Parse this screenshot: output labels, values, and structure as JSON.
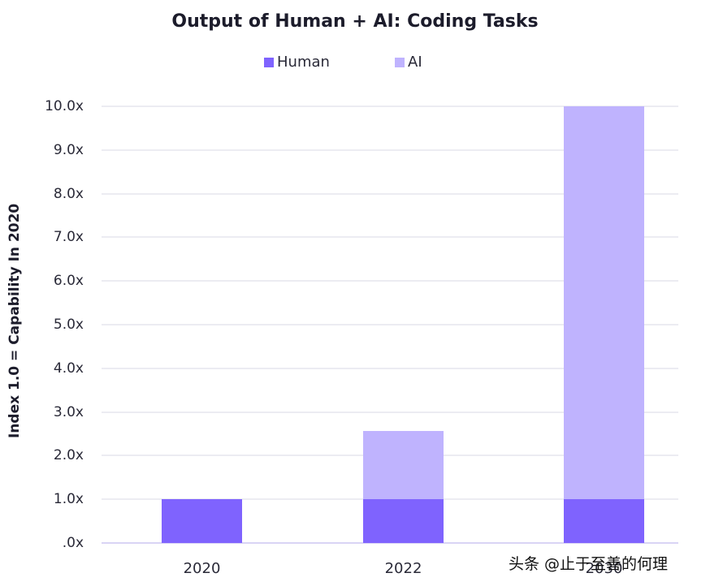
{
  "chart_data": {
    "type": "bar",
    "stacked": true,
    "title": "Output of Human + AI: Coding Tasks",
    "xlabel": "",
    "ylabel": "Index 1.0 = Capability In 2020",
    "categories": [
      "2020",
      "2022",
      "2030"
    ],
    "series": [
      {
        "name": "Human",
        "color": "#7f63fe",
        "values": [
          1.0,
          1.0,
          1.0
        ]
      },
      {
        "name": "AI",
        "color": "#bfb3fe",
        "values": [
          0.0,
          1.57,
          9.0
        ]
      }
    ],
    "totals": [
      1.0,
      2.57,
      10.0
    ],
    "ylim": [
      0,
      10
    ],
    "yticks": [
      ".0x",
      "1.0x",
      "2.0x",
      "3.0x",
      "4.0x",
      "5.0x",
      "6.0x",
      "7.0x",
      "8.0x",
      "9.0x",
      "10.0x"
    ],
    "grid": true,
    "legend_position": "top"
  },
  "legend": [
    {
      "label": "Human",
      "color": "#7f63fe"
    },
    {
      "label": "AI",
      "color": "#bfb3fe"
    }
  ],
  "watermark": "头条 @止于至善的何理"
}
